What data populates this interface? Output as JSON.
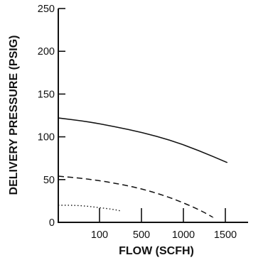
{
  "chart_data": {
    "type": "line",
    "xlabel": "FLOW (SCFH)",
    "ylabel": "DELIVERY PRESSURE (PSIG)",
    "ylim": [
      0,
      250
    ],
    "y_ticks": [
      0,
      50,
      100,
      150,
      200,
      250
    ],
    "x_tick_labels": [
      "100",
      "500",
      "1000",
      "1500"
    ],
    "grid": false,
    "legend": "none",
    "series": [
      {
        "style": "solid",
        "x": [
          0,
          200,
          400,
          600,
          800,
          1000,
          1200
        ],
        "y": [
          122,
          118,
          112,
          105,
          96,
          84,
          70
        ]
      },
      {
        "style": "dashed",
        "x": [
          0,
          200,
          400,
          600,
          800,
          1000,
          1100
        ],
        "y": [
          54,
          51,
          46,
          39,
          29,
          15,
          6
        ]
      },
      {
        "style": "dotted",
        "x": [
          0,
          100,
          200,
          300,
          400,
          450
        ],
        "y": [
          20,
          20,
          19,
          17,
          15,
          13
        ]
      }
    ]
  }
}
